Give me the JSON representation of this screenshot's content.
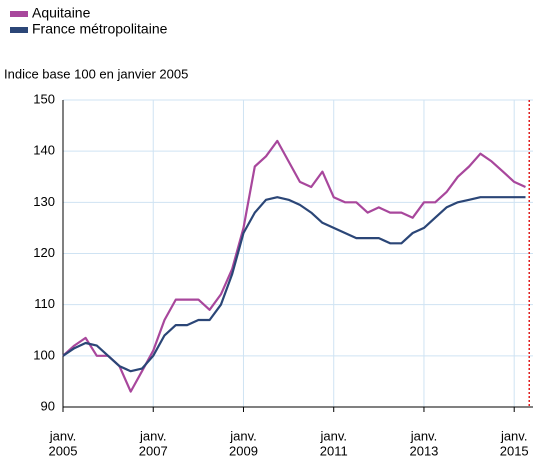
{
  "chart_data": {
    "type": "line",
    "subtitle": "Indice base 100 en janvier 2005",
    "x": [
      "2005-01",
      "2005-04",
      "2005-07",
      "2005-10",
      "2006-01",
      "2006-04",
      "2006-07",
      "2006-10",
      "2007-01",
      "2007-04",
      "2007-07",
      "2007-10",
      "2008-01",
      "2008-04",
      "2008-07",
      "2008-10",
      "2009-01",
      "2009-04",
      "2009-07",
      "2009-10",
      "2010-01",
      "2010-04",
      "2010-07",
      "2010-10",
      "2011-01",
      "2011-04",
      "2011-07",
      "2011-10",
      "2012-01",
      "2012-04",
      "2012-07",
      "2012-10",
      "2013-01",
      "2013-04",
      "2013-07",
      "2013-10",
      "2014-01",
      "2014-04",
      "2014-07",
      "2014-10",
      "2015-01",
      "2015-04"
    ],
    "series": [
      {
        "name": "Aquitaine",
        "color": "#a8479c",
        "values": [
          100,
          102,
          103.5,
          100,
          100,
          98,
          93,
          97,
          101,
          107,
          111,
          111,
          111,
          109,
          112,
          117,
          125,
          137,
          139,
          142,
          138,
          134,
          133,
          136,
          131,
          130,
          130,
          128,
          129,
          128,
          128,
          127,
          130,
          130,
          132,
          135,
          137,
          139.5,
          138,
          136,
          134,
          133
        ]
      },
      {
        "name": "France métropolitaine",
        "color": "#2b4677",
        "values": [
          100,
          101.5,
          102.5,
          102,
          100,
          98,
          97,
          97.5,
          100,
          104,
          106,
          106,
          107,
          107,
          110,
          116,
          124,
          128,
          130.5,
          131,
          130.5,
          129.5,
          128,
          126,
          125,
          124,
          123,
          123,
          123,
          122,
          122,
          124,
          125,
          127,
          129,
          130,
          130.5,
          131,
          131,
          131,
          131,
          131
        ]
      }
    ],
    "xlim": [
      "2005-01",
      "2015-06"
    ],
    "xticks": [
      {
        "value": "2005-01",
        "label": [
          "janv.",
          "2005"
        ]
      },
      {
        "value": "2007-01",
        "label": [
          "janv.",
          "2007"
        ]
      },
      {
        "value": "2009-01",
        "label": [
          "janv.",
          "2009"
        ]
      },
      {
        "value": "2011-01",
        "label": [
          "janv.",
          "2011"
        ]
      },
      {
        "value": "2013-01",
        "label": [
          "janv.",
          "2013"
        ]
      },
      {
        "value": "2015-01",
        "label": [
          "janv.",
          "2015"
        ]
      }
    ],
    "ylim": [
      90,
      150
    ],
    "yticks": [
      90,
      100,
      110,
      120,
      130,
      140,
      150
    ],
    "grid": true,
    "marker_x": "2015-05",
    "marker_color": "#e02020",
    "legend": "top-left"
  }
}
